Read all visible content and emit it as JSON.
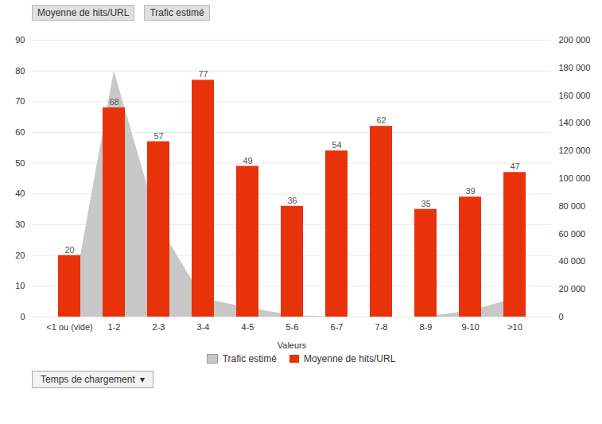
{
  "chart_data": {
    "type": "bar",
    "xlabel": "Valeurs",
    "categories": [
      "<1 ou (vide)",
      "1-2",
      "2-3",
      "3-4",
      "4-5",
      "5-6",
      "6-7",
      "7-8",
      "8-9",
      "9-10",
      ">10"
    ],
    "series": [
      {
        "name": "Trafic estimé",
        "type": "area",
        "color": "#C8C8C8",
        "values": [
          0,
          80,
          30,
          6,
          3,
          0.5,
          0,
          0,
          0,
          2,
          6
        ]
      },
      {
        "name": "Moyenne de hits/URL",
        "type": "bar",
        "color": "#E8320A",
        "data_labels": true,
        "values": [
          20,
          68,
          57,
          77,
          49,
          36,
          54,
          62,
          35,
          39,
          47
        ]
      }
    ],
    "ylim": [
      0,
      90
    ],
    "yticks": [
      0,
      10,
      20,
      30,
      40,
      50,
      60,
      70,
      80,
      90
    ],
    "y2lim": [
      0,
      200000
    ],
    "y2ticks": [
      0,
      {
        "value": 20000,
        "label": "20 000"
      },
      {
        "value": 40000,
        "label": "40 000"
      },
      {
        "value": 60000,
        "label": "60 000"
      },
      {
        "value": 80000,
        "label": "80 000"
      },
      {
        "value": 100000,
        "label": "100 000"
      },
      {
        "value": 120000,
        "label": "120 000"
      },
      {
        "value": 140000,
        "label": "140 000"
      },
      {
        "value": 160000,
        "label": "160 000"
      },
      {
        "value": 180000,
        "label": "180 000"
      },
      {
        "value": 200000,
        "label": "200 000"
      }
    ],
    "grid": true,
    "legend": "bottom",
    "annotations": [
      "Moyenne de hits/URL",
      "Trafic estimé",
      "Temps de chargement  ▾"
    ]
  }
}
